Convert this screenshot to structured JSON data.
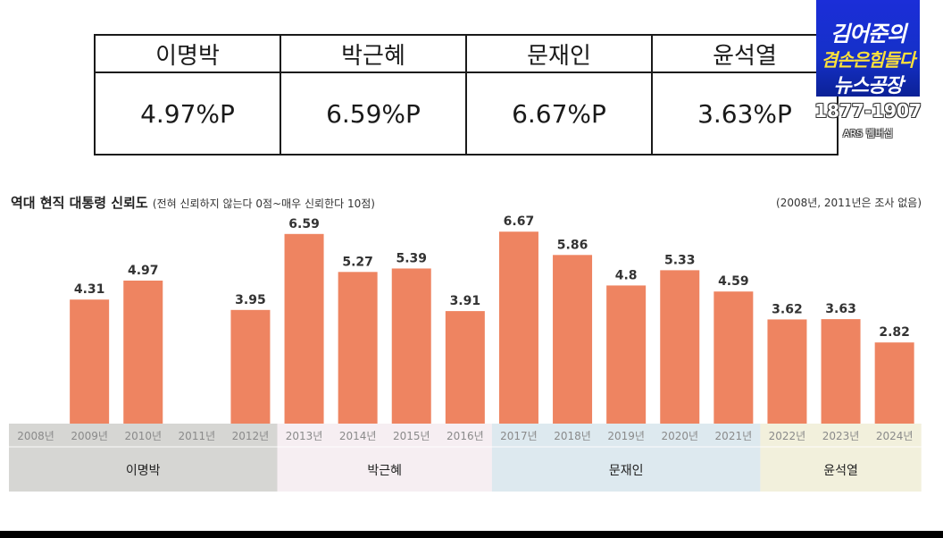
{
  "summary": {
    "presidents": [
      {
        "name": "이명박",
        "value": "4.97%P"
      },
      {
        "name": "박근혜",
        "value": "6.59%P"
      },
      {
        "name": "문재인",
        "value": "6.67%P"
      },
      {
        "name": "윤석열",
        "value": "3.63%P"
      }
    ]
  },
  "logo": {
    "line1": "김어준의",
    "line2": "겸손은힘들다",
    "line3": "뉴스공장",
    "ars_number": "1877-1907",
    "ars_label": "ARS 멤버십"
  },
  "colors": {
    "bar": "#ee8461",
    "band_lee": "#d6d6d3",
    "band_park": "#f6eef2",
    "band_moon": "#dde9ef",
    "band_yoon": "#f2f0dc"
  },
  "chart_data": {
    "type": "bar",
    "title": "역대 현직 대통령 신뢰도",
    "subtitle": "(전혀 신뢰하지 않는다 0점~매우 신뢰한다 10점)",
    "note": "(2008년, 2011년은 조사 없음)",
    "categories": [
      "2008년",
      "2009년",
      "2010년",
      "2011년",
      "2012년",
      "2013년",
      "2014년",
      "2015년",
      "2016년",
      "2017년",
      "2018년",
      "2019년",
      "2020년",
      "2021년",
      "2022년",
      "2023년",
      "2024년"
    ],
    "values": [
      null,
      4.31,
      4.97,
      null,
      3.95,
      6.59,
      5.27,
      5.39,
      3.91,
      6.67,
      5.86,
      4.8,
      5.33,
      4.59,
      3.62,
      3.63,
      2.82
    ],
    "value_labels": [
      "",
      "4.31",
      "4.97",
      "",
      "3.95",
      "6.59",
      "5.27",
      "5.39",
      "3.91",
      "6.67",
      "5.86",
      "4.8",
      "5.33",
      "4.59",
      "3.62",
      "3.63",
      "2.82"
    ],
    "groups": [
      {
        "name": "이명박",
        "start": 0,
        "end": 4
      },
      {
        "name": "박근혜",
        "start": 5,
        "end": 8
      },
      {
        "name": "문재인",
        "start": 9,
        "end": 13
      },
      {
        "name": "윤석열",
        "start": 14,
        "end": 16
      }
    ],
    "ylim": [
      0,
      7
    ],
    "xlabel": "",
    "ylabel": ""
  }
}
